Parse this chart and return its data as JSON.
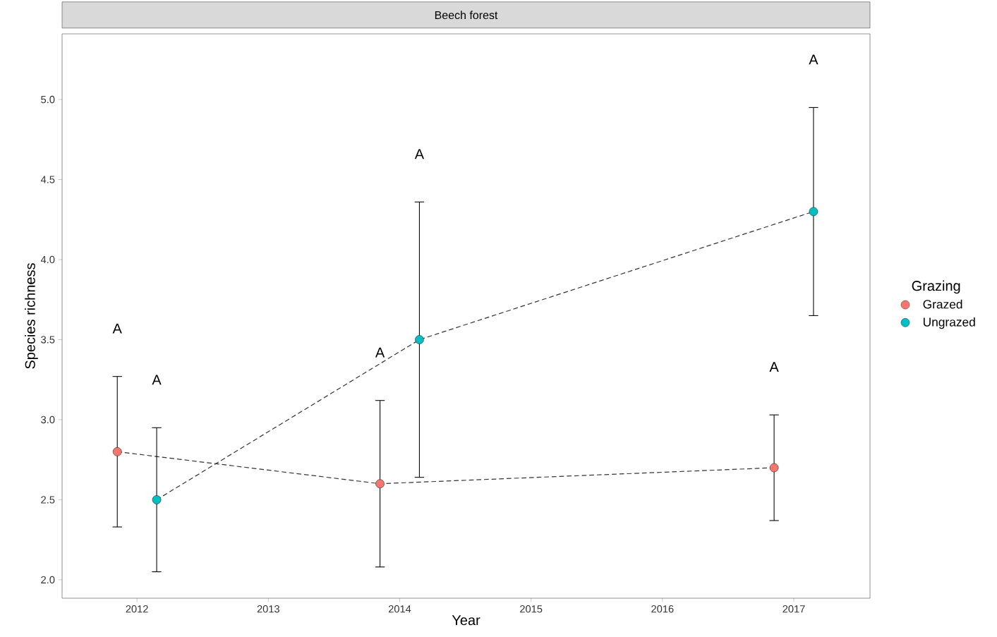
{
  "chart_data": {
    "type": "line",
    "title": "Beech forest",
    "xlabel": "Year",
    "ylabel": "Species richness",
    "legend_title": "Grazing",
    "series": [
      {
        "name": "Grazed",
        "color": "#f8766d",
        "x": [
          2011.85,
          2013.85,
          2016.85
        ],
        "values": [
          2.8,
          2.6,
          2.7
        ],
        "errors": [
          [
            2.33,
            3.27
          ],
          [
            2.08,
            3.12
          ],
          [
            2.37,
            3.03
          ]
        ]
      },
      {
        "name": "Ungrazed",
        "color": "#00bfc4",
        "x": [
          2012.15,
          2014.15,
          2017.15
        ],
        "values": [
          2.5,
          3.5,
          4.3
        ],
        "errors": [
          [
            2.05,
            2.95
          ],
          [
            2.64,
            4.36
          ],
          [
            3.65,
            4.95
          ]
        ]
      }
    ],
    "xlim": [
      2011.43,
      2017.58
    ],
    "ylim": [
      1.885,
      5.41
    ],
    "xticks": [
      2012,
      2013,
      2014,
      2015,
      2016,
      2017
    ],
    "yticks": [
      {
        "value": 2,
        "label": "2.0"
      },
      {
        "value": 2.5,
        "label": "2.5"
      },
      {
        "value": 3,
        "label": "3.0"
      },
      {
        "value": 3.5,
        "label": "3.5"
      },
      {
        "value": 4,
        "label": "4.0"
      },
      {
        "value": 4.5,
        "label": "4.5"
      },
      {
        "value": 5,
        "label": "5.0"
      }
    ],
    "annotations": [
      "A",
      "A",
      "A",
      "A",
      "A",
      "A"
    ],
    "legend": "right",
    "marker": "circle",
    "line_style": "dashed",
    "grid": false
  }
}
